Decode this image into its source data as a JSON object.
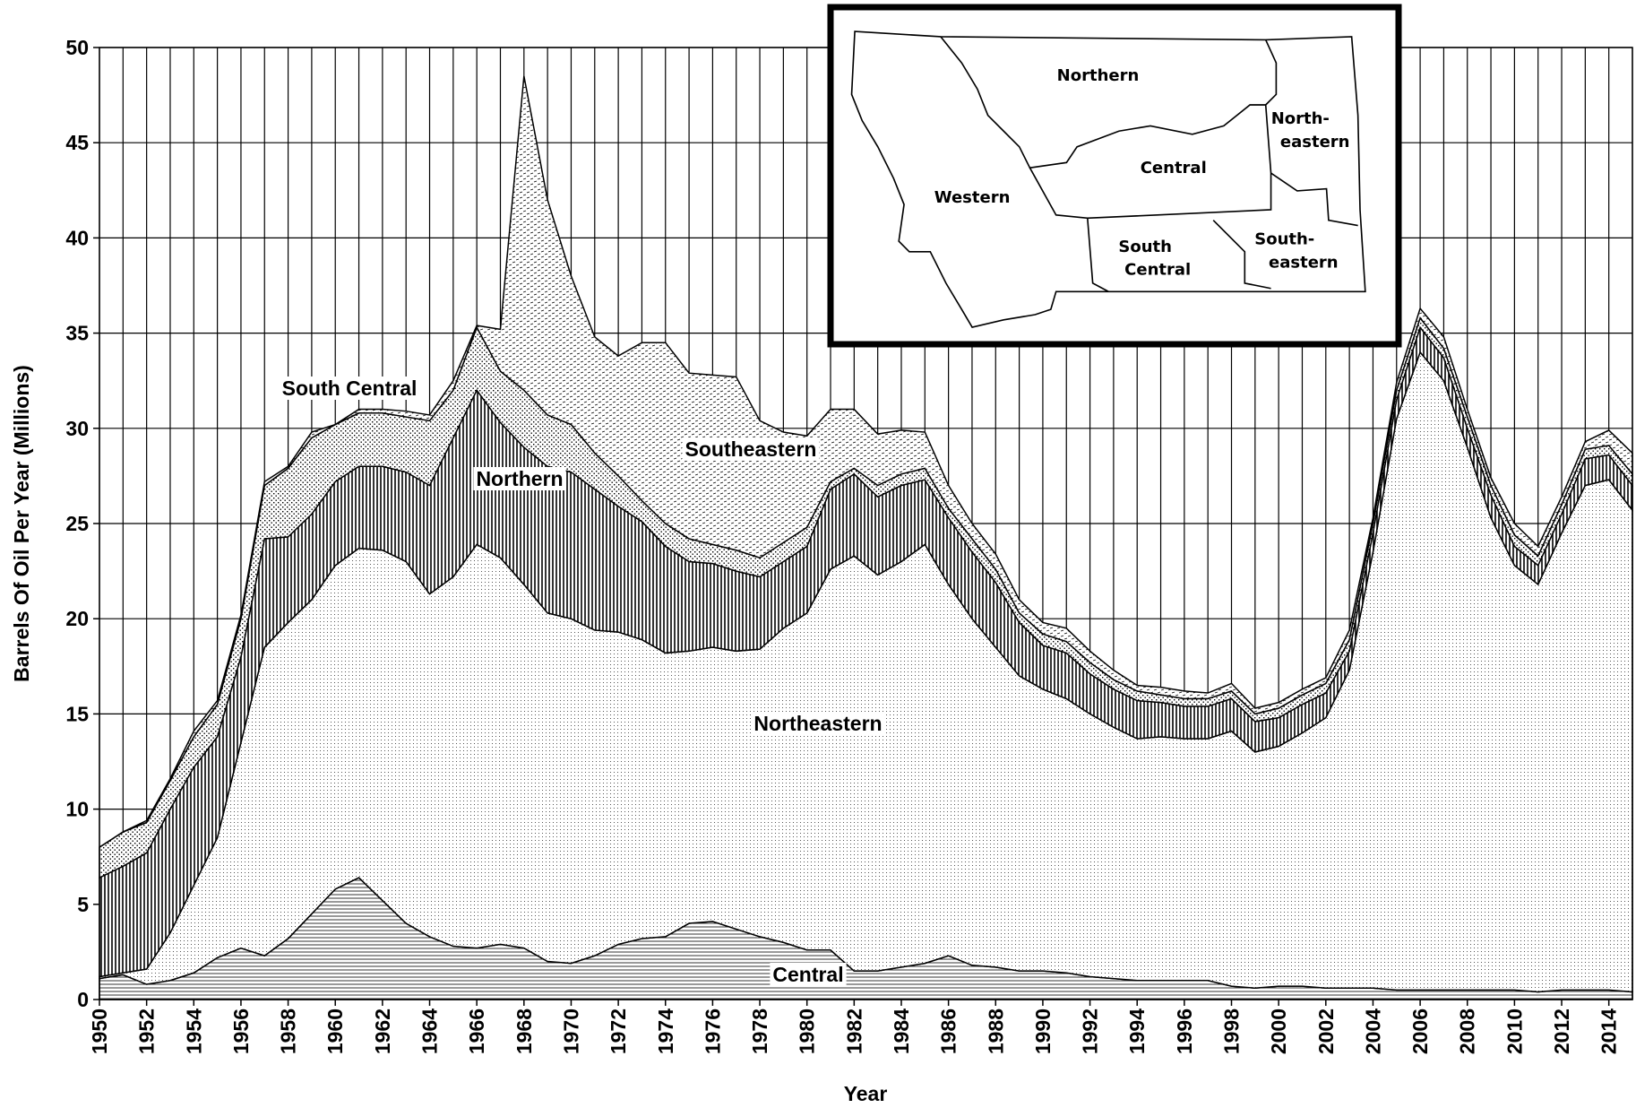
{
  "chart_data": {
    "type": "stacked-area",
    "x_label": "Year",
    "y_label": "Barrels Of Oil Per Year (Millions)",
    "x": [
      1950,
      1951,
      1952,
      1953,
      1954,
      1955,
      1956,
      1957,
      1958,
      1959,
      1960,
      1961,
      1962,
      1963,
      1964,
      1965,
      1966,
      1967,
      1968,
      1969,
      1970,
      1971,
      1972,
      1973,
      1974,
      1975,
      1976,
      1977,
      1978,
      1979,
      1980,
      1981,
      1982,
      1983,
      1984,
      1985,
      1986,
      1987,
      1988,
      1989,
      1990,
      1991,
      1992,
      1993,
      1994,
      1995,
      1996,
      1997,
      1998,
      1999,
      2000,
      2001,
      2002,
      2003,
      2004,
      2005,
      2006,
      2007,
      2008,
      2009,
      2010,
      2011,
      2012,
      2013,
      2014,
      2015
    ],
    "xlim": [
      1950,
      2015
    ],
    "xticks": [
      1950,
      1952,
      1954,
      1956,
      1958,
      1960,
      1962,
      1964,
      1966,
      1968,
      1970,
      1972,
      1974,
      1976,
      1978,
      1980,
      1982,
      1984,
      1986,
      1988,
      1990,
      1992,
      1994,
      1996,
      1998,
      2000,
      2002,
      2004,
      2006,
      2008,
      2010,
      2012,
      2014
    ],
    "ylim": [
      0,
      50
    ],
    "yticks": [
      0,
      5,
      10,
      15,
      20,
      25,
      30,
      35,
      40,
      45,
      50
    ],
    "grid": true,
    "series": [
      {
        "name": "Central",
        "pattern": "hlines",
        "color": "#000000",
        "values": [
          1.1,
          1.3,
          0.8,
          1.0,
          1.4,
          2.2,
          2.7,
          2.3,
          3.2,
          4.5,
          5.8,
          6.4,
          5.2,
          4.0,
          3.3,
          2.8,
          2.7,
          2.9,
          2.7,
          2.0,
          1.9,
          2.3,
          2.9,
          3.2,
          3.3,
          4.0,
          4.1,
          3.7,
          3.3,
          3.0,
          2.6,
          2.6,
          1.5,
          1.5,
          1.7,
          1.9,
          2.3,
          1.8,
          1.7,
          1.5,
          1.5,
          1.4,
          1.2,
          1.1,
          1.0,
          1.0,
          1.0,
          1.0,
          0.7,
          0.6,
          0.7,
          0.7,
          0.6,
          0.6,
          0.6,
          0.5,
          0.5,
          0.5,
          0.5,
          0.5,
          0.5,
          0.4,
          0.5,
          0.5,
          0.5,
          0.4
        ]
      },
      {
        "name": "Northeastern",
        "pattern": "dots",
        "color": "#000000",
        "values": [
          0.1,
          0.1,
          0.8,
          2.5,
          4.6,
          6.3,
          10.8,
          16.2,
          16.6,
          16.5,
          17.0,
          17.3,
          18.4,
          19.0,
          18.0,
          19.4,
          21.2,
          20.3,
          19.1,
          18.3,
          18.1,
          17.1,
          16.4,
          15.7,
          14.9,
          14.3,
          14.4,
          14.6,
          15.1,
          16.5,
          17.7,
          20.0,
          21.8,
          20.8,
          21.3,
          22.0,
          19.5,
          18.2,
          16.8,
          15.5,
          14.8,
          14.4,
          13.8,
          13.2,
          12.7,
          12.8,
          12.7,
          12.7,
          13.4,
          12.4,
          12.6,
          13.3,
          14.2,
          16.7,
          22.9,
          30.0,
          33.5,
          32.0,
          28.5,
          24.8,
          22.3,
          21.4,
          24.0,
          26.5,
          26.8,
          25.3
        ]
      },
      {
        "name": "Northern",
        "pattern": "vlines",
        "color": "#000000",
        "values": [
          5.2,
          5.6,
          6.1,
          6.5,
          6.2,
          5.3,
          4.5,
          5.7,
          4.5,
          4.5,
          4.4,
          4.3,
          4.4,
          4.7,
          5.7,
          7.3,
          8.1,
          7.1,
          7.2,
          7.7,
          7.7,
          7.4,
          6.6,
          6.2,
          5.6,
          4.7,
          4.4,
          4.2,
          3.8,
          3.5,
          3.5,
          4.2,
          4.3,
          4.1,
          4.0,
          3.4,
          3.5,
          3.5,
          3.4,
          2.8,
          2.3,
          2.4,
          2.1,
          2.0,
          2.0,
          1.8,
          1.7,
          1.7,
          1.7,
          1.6,
          1.5,
          1.5,
          1.3,
          1.0,
          1.0,
          1.0,
          1.3,
          1.2,
          1.0,
          1.2,
          1.0,
          1.0,
          1.0,
          1.4,
          1.3,
          1.3
        ]
      },
      {
        "name": "South Central",
        "pattern": "speckle",
        "color": "#000000",
        "values": [
          1.6,
          1.8,
          1.6,
          1.5,
          1.6,
          1.7,
          2.0,
          2.8,
          3.6,
          4.0,
          3.0,
          2.8,
          2.8,
          2.9,
          3.4,
          2.5,
          3.3,
          2.7,
          3.0,
          2.7,
          2.5,
          1.9,
          1.6,
          1.1,
          1.2,
          1.2,
          1.0,
          1.1,
          1.0,
          1.0,
          1.0,
          0.4,
          0.3,
          0.6,
          0.6,
          0.6,
          0.5,
          0.7,
          0.7,
          0.5,
          0.6,
          0.6,
          0.6,
          0.5,
          0.5,
          0.4,
          0.4,
          0.4,
          0.4,
          0.4,
          0.5,
          0.5,
          0.5,
          0.6,
          0.5,
          0.5,
          0.5,
          0.5,
          0.6,
          0.5,
          0.6,
          0.5,
          0.5,
          0.5,
          0.5,
          0.6
        ]
      },
      {
        "name": "Southeastern",
        "pattern": "dashes",
        "color": "#000000",
        "values": [
          0,
          0,
          0.1,
          0.1,
          0.3,
          0.2,
          0.2,
          0.2,
          0.1,
          0.3,
          0,
          0.2,
          0.2,
          0.3,
          0.3,
          0.5,
          0.1,
          2.2,
          16.5,
          11.3,
          7.8,
          6.1,
          6.3,
          8.3,
          9.5,
          8.7,
          8.9,
          9.1,
          7.2,
          5.8,
          4.8,
          3.8,
          3.1,
          2.7,
          2.3,
          1.9,
          1.2,
          0.8,
          0.8,
          0.7,
          0.6,
          0.7,
          0.6,
          0.5,
          0.3,
          0.4,
          0.4,
          0.3,
          0.4,
          0.3,
          0.3,
          0.3,
          0.3,
          0.5,
          0.3,
          0.4,
          0.5,
          0.6,
          0.4,
          0.4,
          0.6,
          0.5,
          0.4,
          0.4,
          0.8,
          1.1
        ]
      }
    ],
    "inset_map": {
      "labels": [
        [
          "Northern"
        ],
        [
          "North-",
          "eastern"
        ],
        [
          "Central"
        ],
        [
          "Western"
        ],
        [
          "South",
          "Central"
        ],
        [
          "South-",
          "eastern"
        ]
      ]
    }
  }
}
